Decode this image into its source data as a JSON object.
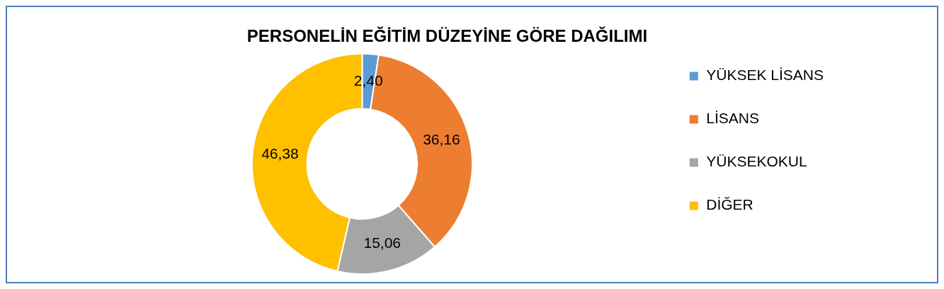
{
  "chart_data": {
    "type": "donut",
    "title": "PERSONELİN EĞİTİM DÜZEYİNE GÖRE DAĞILIMI",
    "categories": [
      "YÜKSEK LİSANS",
      "LİSANS",
      "YÜKSEKOKUL",
      "DİĞER"
    ],
    "values": [
      2.4,
      36.16,
      15.06,
      46.38
    ],
    "colors": [
      "#5b9bd5",
      "#ed7d31",
      "#a5a5a5",
      "#ffc000"
    ],
    "value_labels": [
      "2,40",
      "36,16",
      "15,06",
      "46,38"
    ],
    "legend": "right"
  }
}
